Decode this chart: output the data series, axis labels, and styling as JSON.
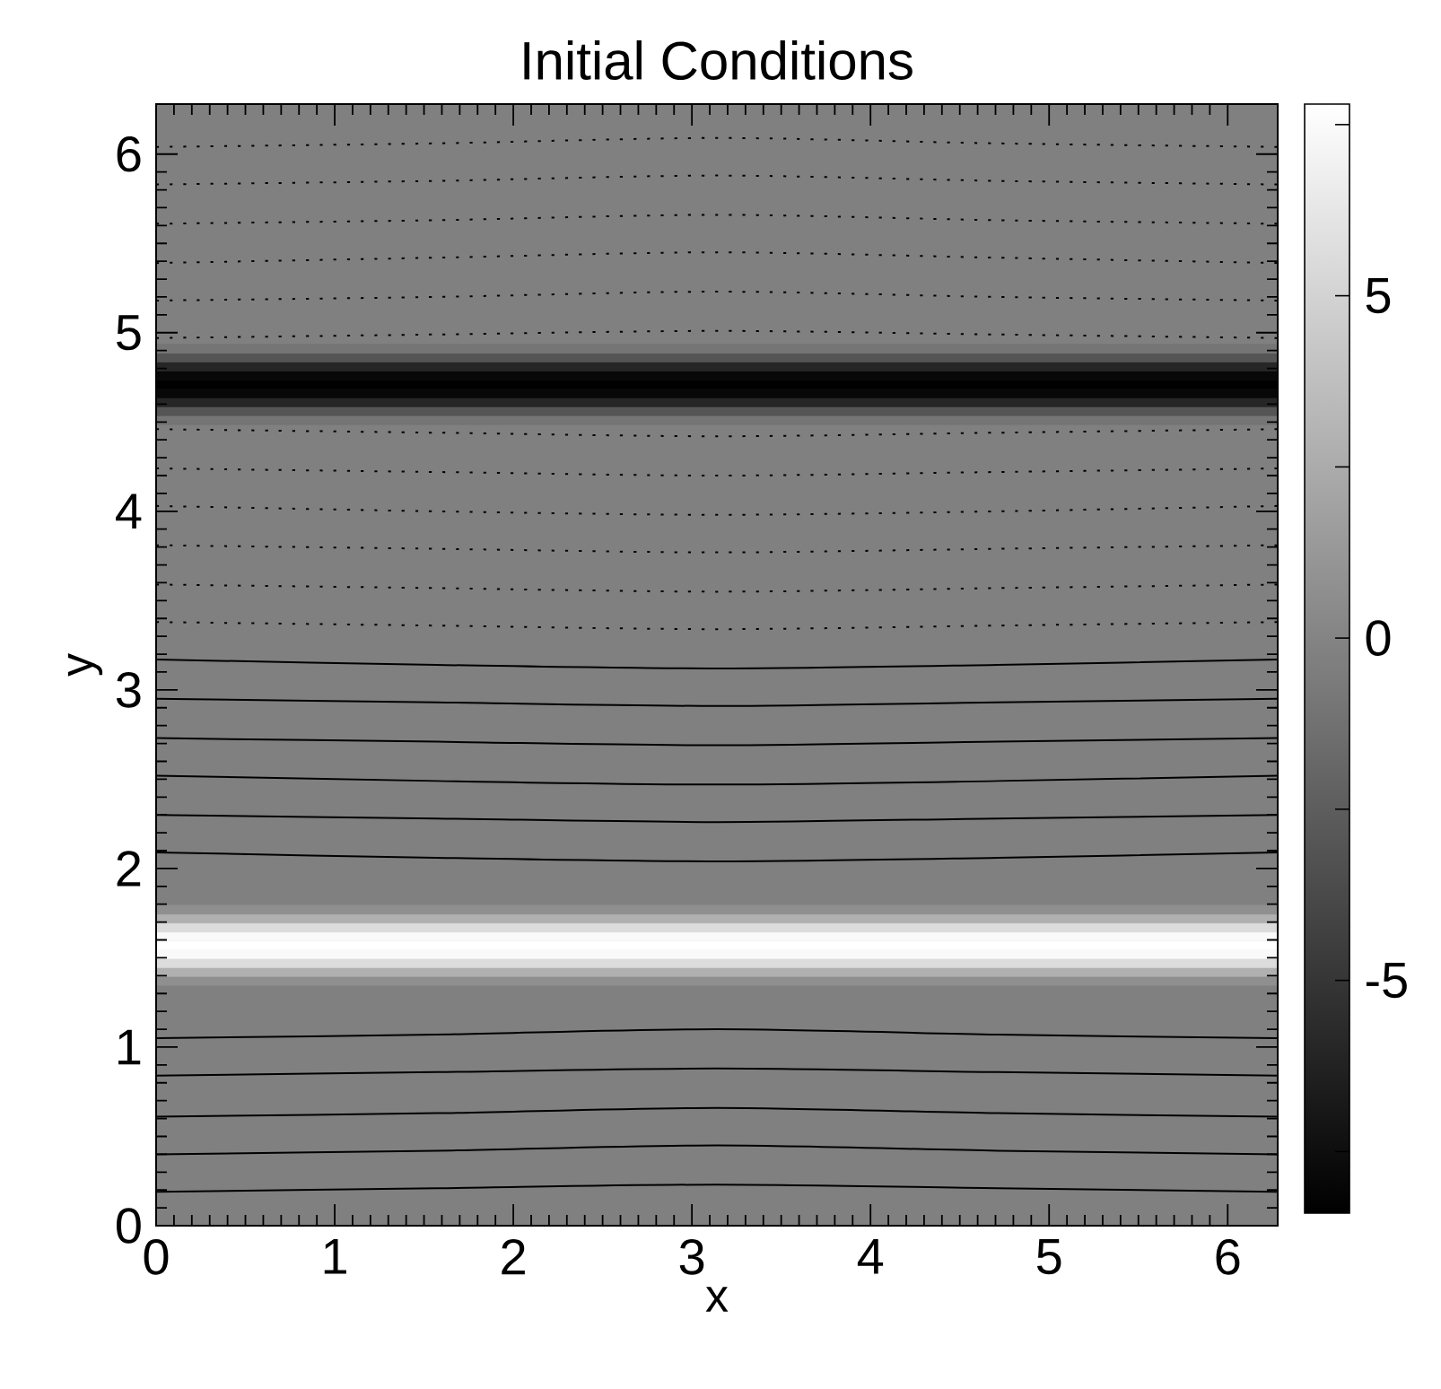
{
  "chart_data": {
    "type": "line",
    "title": "Initial Conditions",
    "xlabel": "x",
    "ylabel": "y",
    "xlim": [
      0,
      6.28
    ],
    "ylim": [
      0,
      6.28
    ],
    "xticks": [
      0,
      1,
      2,
      3,
      4,
      5,
      6
    ],
    "yticks": [
      0,
      1,
      2,
      3,
      4,
      5,
      6
    ],
    "clim": [
      -8.4,
      7.8
    ],
    "cticks": [
      -5,
      0,
      5
    ],
    "x": [
      0,
      1.57,
      3.14,
      4.71,
      6.28
    ],
    "bands": [
      {
        "axis": "y",
        "from": 1.345,
        "to": 1.395,
        "color": "#8f8f8f"
      },
      {
        "axis": "y",
        "from": 1.395,
        "to": 1.445,
        "color": "#b0b0b0"
      },
      {
        "axis": "y",
        "from": 1.445,
        "to": 1.495,
        "color": "#dcdcdc"
      },
      {
        "axis": "y",
        "from": 1.495,
        "to": 1.545,
        "color": "#f9f9f9"
      },
      {
        "axis": "y",
        "from": 1.545,
        "to": 1.595,
        "color": "#ffffff"
      },
      {
        "axis": "y",
        "from": 1.595,
        "to": 1.645,
        "color": "#f9f9f9"
      },
      {
        "axis": "y",
        "from": 1.645,
        "to": 1.695,
        "color": "#dcdcdc"
      },
      {
        "axis": "y",
        "from": 1.695,
        "to": 1.745,
        "color": "#b0b0b0"
      },
      {
        "axis": "y",
        "from": 1.745,
        "to": 1.795,
        "color": "#8f8f8f"
      },
      {
        "axis": "y",
        "from": 4.485,
        "to": 4.535,
        "color": "#757575"
      },
      {
        "axis": "y",
        "from": 4.535,
        "to": 4.585,
        "color": "#555555"
      },
      {
        "axis": "y",
        "from": 4.585,
        "to": 4.635,
        "color": "#262626"
      },
      {
        "axis": "y",
        "from": 4.635,
        "to": 4.685,
        "color": "#080808"
      },
      {
        "axis": "y",
        "from": 4.685,
        "to": 4.735,
        "color": "#000000"
      },
      {
        "axis": "y",
        "from": 4.735,
        "to": 4.785,
        "color": "#080808"
      },
      {
        "axis": "y",
        "from": 4.785,
        "to": 4.835,
        "color": "#262626"
      },
      {
        "axis": "y",
        "from": 4.835,
        "to": 4.885,
        "color": "#555555"
      },
      {
        "axis": "y",
        "from": 4.885,
        "to": 4.935,
        "color": "#757575"
      }
    ],
    "series": [
      {
        "color": "#000000",
        "line_style": "solid",
        "values": [
          0.19,
          0.21,
          0.23,
          0.21,
          0.19
        ]
      },
      {
        "color": "#000000",
        "line_style": "solid",
        "values": [
          0.4,
          0.42,
          0.45,
          0.42,
          0.4
        ]
      },
      {
        "color": "#000000",
        "line_style": "solid",
        "values": [
          0.61,
          0.63,
          0.66,
          0.63,
          0.61
        ]
      },
      {
        "color": "#000000",
        "line_style": "solid",
        "values": [
          0.84,
          0.86,
          0.88,
          0.86,
          0.84
        ]
      },
      {
        "color": "#000000",
        "line_style": "solid",
        "values": [
          1.05,
          1.07,
          1.1,
          1.07,
          1.05
        ]
      },
      {
        "color": "#000000",
        "line_style": "solid",
        "values": [
          2.09,
          2.06,
          2.04,
          2.06,
          2.09
        ]
      },
      {
        "color": "#000000",
        "line_style": "solid",
        "values": [
          2.3,
          2.28,
          2.26,
          2.28,
          2.3
        ]
      },
      {
        "color": "#000000",
        "line_style": "solid",
        "values": [
          2.52,
          2.49,
          2.47,
          2.49,
          2.52
        ]
      },
      {
        "color": "#000000",
        "line_style": "solid",
        "values": [
          2.73,
          2.71,
          2.69,
          2.71,
          2.73
        ]
      },
      {
        "color": "#000000",
        "line_style": "solid",
        "values": [
          2.95,
          2.93,
          2.91,
          2.93,
          2.95
        ]
      },
      {
        "color": "#000000",
        "line_style": "solid",
        "values": [
          3.17,
          3.14,
          3.12,
          3.14,
          3.17
        ]
      },
      {
        "color": "#000000",
        "line_style": "dotted",
        "values": [
          3.38,
          3.36,
          3.34,
          3.36,
          3.38
        ]
      },
      {
        "color": "#000000",
        "line_style": "dotted",
        "values": [
          3.59,
          3.57,
          3.55,
          3.57,
          3.59
        ]
      },
      {
        "color": "#000000",
        "line_style": "dotted",
        "values": [
          3.81,
          3.79,
          3.77,
          3.79,
          3.81
        ]
      },
      {
        "color": "#000000",
        "line_style": "dotted",
        "values": [
          4.03,
          4.0,
          3.98,
          4.0,
          4.03
        ]
      },
      {
        "color": "#000000",
        "line_style": "dotted",
        "values": [
          4.24,
          4.22,
          4.2,
          4.22,
          4.24
        ]
      },
      {
        "color": "#000000",
        "line_style": "dotted",
        "values": [
          4.46,
          4.44,
          4.42,
          4.44,
          4.46
        ]
      },
      {
        "color": "#000000",
        "line_style": "dotted",
        "values": [
          4.97,
          4.99,
          5.01,
          4.99,
          4.97
        ]
      },
      {
        "color": "#000000",
        "line_style": "dotted",
        "values": [
          5.18,
          5.2,
          5.23,
          5.2,
          5.18
        ]
      },
      {
        "color": "#000000",
        "line_style": "dotted",
        "values": [
          5.39,
          5.42,
          5.45,
          5.42,
          5.39
        ]
      },
      {
        "color": "#000000",
        "line_style": "dotted",
        "values": [
          5.61,
          5.63,
          5.66,
          5.63,
          5.61
        ]
      },
      {
        "color": "#000000",
        "line_style": "dotted",
        "values": [
          5.83,
          5.85,
          5.88,
          5.85,
          5.83
        ]
      },
      {
        "color": "#000000",
        "line_style": "dotted",
        "values": [
          6.04,
          6.06,
          6.09,
          6.06,
          6.04
        ]
      }
    ]
  }
}
